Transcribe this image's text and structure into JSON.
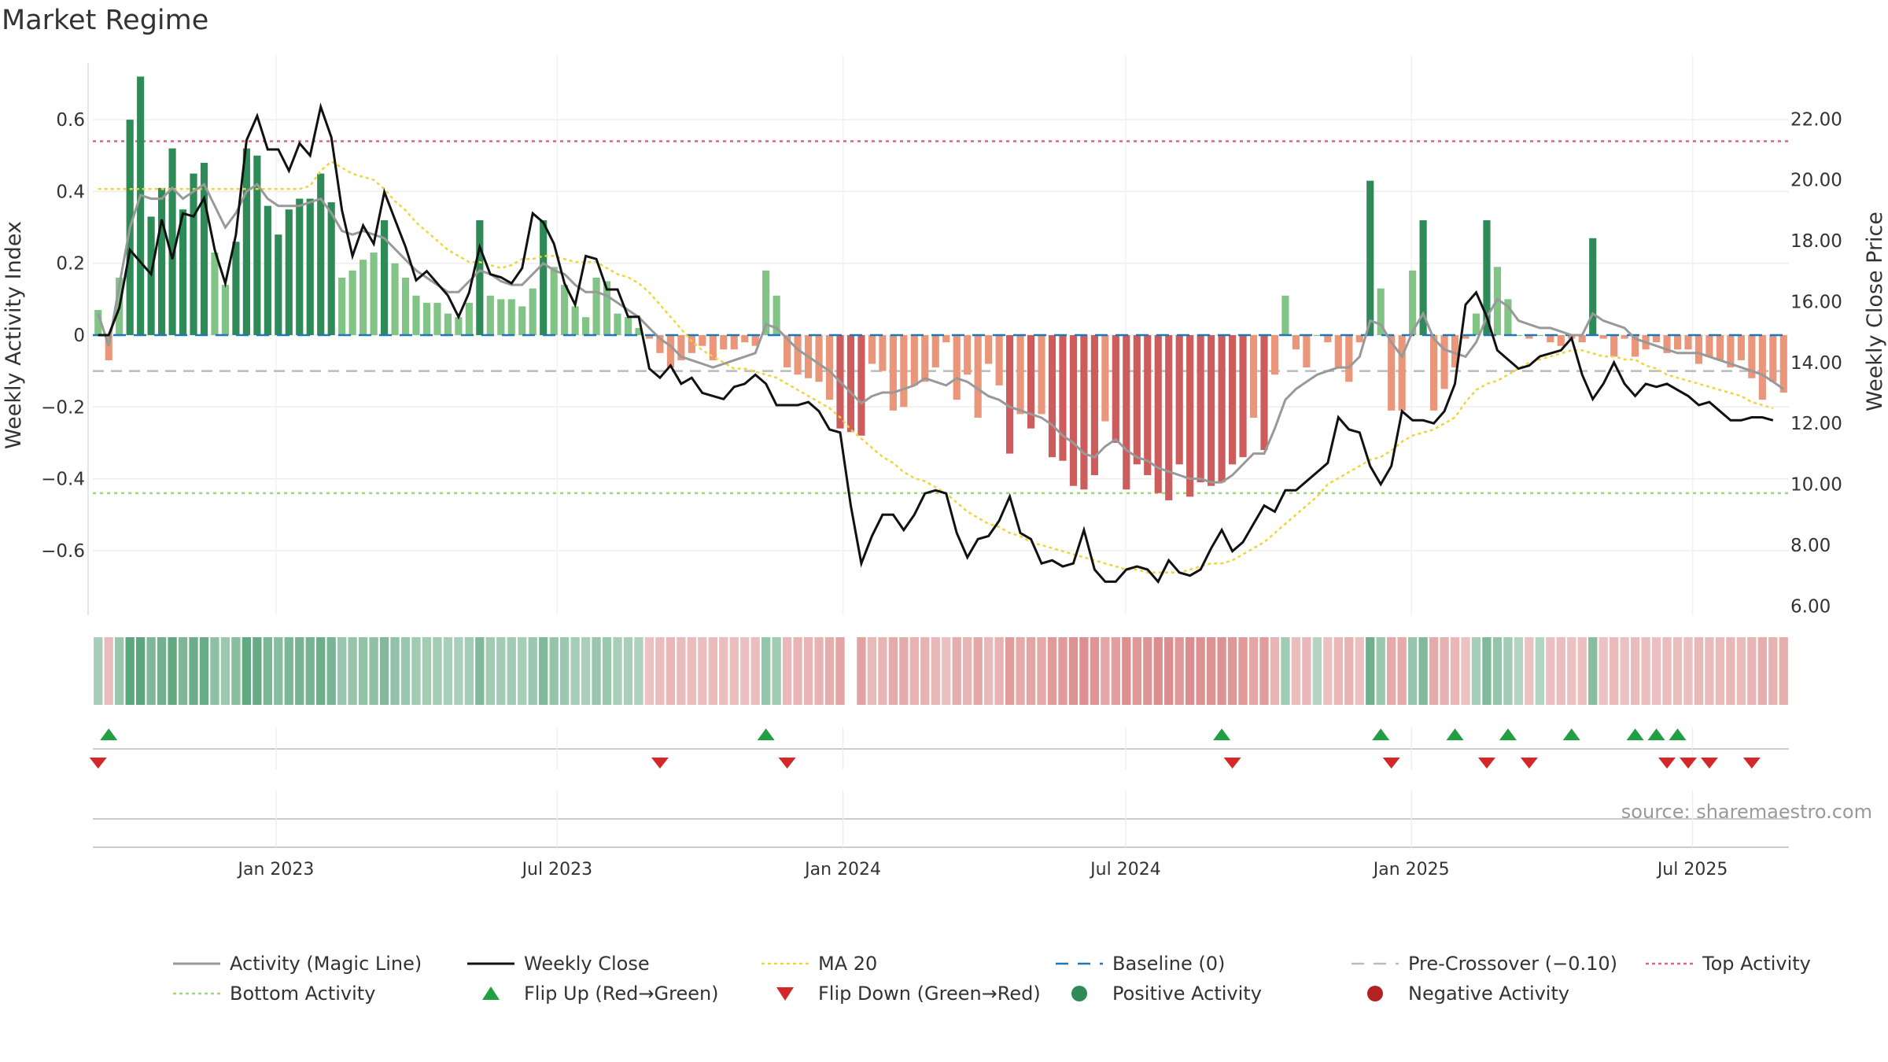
{
  "chart_data": {
    "type": "bar",
    "title": "Market Regime",
    "ylabel_left": "Weekly Activity Index",
    "ylabel_right": "Weekly Close Price",
    "source": "source: sharemaestro.com",
    "ylim_left": [
      -0.78,
      0.78
    ],
    "ylim_right": [
      5.7,
      24.1
    ],
    "left_ticks": [
      {
        "v": 0.6,
        "label": "0.6"
      },
      {
        "v": 0.4,
        "label": "0.4"
      },
      {
        "v": 0.2,
        "label": "0.2"
      },
      {
        "v": 0,
        "label": "0"
      },
      {
        "v": -0.2,
        "label": "−0.2"
      },
      {
        "v": -0.4,
        "label": "−0.4"
      },
      {
        "v": -0.6,
        "label": "−0.6"
      }
    ],
    "right_ticks": [
      "22.00",
      "20.00",
      "18.00",
      "16.00",
      "14.00",
      "12.00",
      "10.00",
      "8.00",
      "6.00"
    ],
    "date_start": "2022-09-05",
    "date_end": "2025-09-01",
    "x_ticks": [
      {
        "date": "2023-01-01",
        "label": "Jan 2023"
      },
      {
        "date": "2023-07-01",
        "label": "Jul 2023"
      },
      {
        "date": "2024-01-01",
        "label": "Jan 2024"
      },
      {
        "date": "2024-07-01",
        "label": "Jul 2024"
      },
      {
        "date": "2025-01-01",
        "label": "Jan 2025"
      },
      {
        "date": "2025-07-01",
        "label": "Jul 2025"
      }
    ],
    "reference_lines": {
      "top_activity": 0.54,
      "bottom_activity": -0.44,
      "baseline": 0,
      "pre_crossover": -0.1
    },
    "colors": {
      "strong_green": "#2e8b57",
      "light_green": "#82c386",
      "strong_red": "#cd5c5c",
      "light_red": "#e9967a",
      "magic_line": "#999999",
      "close": "#111111",
      "ma20": "#f0d43a",
      "baseline": "#1f77b4",
      "pre_crossover": "#bbbbbb",
      "top_activity": "#d9667a",
      "bottom_activity": "#9fd67a",
      "flip_up": "#20a040",
      "flip_down": "#d62728"
    },
    "activity": [
      0.07,
      -0.07,
      0.16,
      0.6,
      0.72,
      0.33,
      0.41,
      0.52,
      0.35,
      0.45,
      0.48,
      0.23,
      0.14,
      0.26,
      0.52,
      0.5,
      0.36,
      0.28,
      0.35,
      0.38,
      0.38,
      0.45,
      0.37,
      0.16,
      0.18,
      0.21,
      0.23,
      0.32,
      0.2,
      0.16,
      0.11,
      0.09,
      0.09,
      0.06,
      0.05,
      0.09,
      0.32,
      0.11,
      0.1,
      0.1,
      0.08,
      0.13,
      0.32,
      0.19,
      0.14,
      0.08,
      0.05,
      0.16,
      0.15,
      0.06,
      0.05,
      0.02,
      -0.01,
      -0.05,
      -0.09,
      -0.07,
      -0.05,
      -0.03,
      -0.07,
      -0.04,
      -0.04,
      -0.02,
      -0.03,
      0.18,
      0.11,
      -0.09,
      -0.11,
      -0.12,
      -0.13,
      -0.18,
      -0.26,
      -0.27,
      -0.28,
      -0.08,
      -0.1,
      -0.21,
      -0.2,
      -0.14,
      -0.13,
      -0.09,
      -0.02,
      -0.18,
      -0.11,
      -0.23,
      -0.08,
      -0.14,
      -0.33,
      -0.22,
      -0.26,
      -0.22,
      -0.34,
      -0.35,
      -0.42,
      -0.43,
      -0.39,
      -0.24,
      -0.3,
      -0.43,
      -0.36,
      -0.39,
      -0.44,
      -0.46,
      -0.36,
      -0.45,
      -0.41,
      -0.42,
      -0.41,
      -0.36,
      -0.34,
      -0.23,
      -0.32,
      -0.11,
      0.11,
      -0.04,
      -0.09,
      0.0,
      -0.02,
      -0.09,
      -0.13,
      -0.02,
      0.43,
      0.13,
      -0.21,
      -0.21,
      0.18,
      0.32,
      -0.21,
      -0.15,
      -0.09,
      -0.01,
      0.06,
      0.32,
      0.19,
      0.1,
      0.0,
      -0.01,
      0.0,
      -0.02,
      -0.03,
      -0.01,
      -0.02,
      0.27,
      -0.01,
      -0.06,
      -0.01,
      -0.06,
      -0.04,
      -0.02,
      -0.05,
      -0.04,
      -0.04,
      -0.08,
      -0.06,
      -0.07,
      -0.09,
      -0.07,
      -0.12,
      -0.18,
      -0.13,
      -0.16
    ],
    "magic_line": [
      0.06,
      -0.03,
      0.14,
      0.3,
      0.39,
      0.38,
      0.38,
      0.41,
      0.38,
      0.4,
      0.42,
      0.36,
      0.3,
      0.34,
      0.4,
      0.42,
      0.38,
      0.36,
      0.36,
      0.36,
      0.37,
      0.38,
      0.34,
      0.29,
      0.28,
      0.29,
      0.28,
      0.27,
      0.24,
      0.21,
      0.18,
      0.16,
      0.14,
      0.12,
      0.12,
      0.15,
      0.18,
      0.17,
      0.15,
      0.14,
      0.14,
      0.17,
      0.2,
      0.18,
      0.17,
      0.14,
      0.12,
      0.12,
      0.11,
      0.09,
      0.07,
      0.05,
      0.02,
      -0.01,
      -0.03,
      -0.06,
      -0.07,
      -0.08,
      -0.09,
      -0.08,
      -0.07,
      -0.06,
      -0.05,
      0.03,
      0.02,
      -0.01,
      -0.04,
      -0.06,
      -0.08,
      -0.1,
      -0.13,
      -0.16,
      -0.19,
      -0.17,
      -0.16,
      -0.16,
      -0.15,
      -0.14,
      -0.12,
      -0.13,
      -0.14,
      -0.12,
      -0.13,
      -0.15,
      -0.17,
      -0.18,
      -0.2,
      -0.21,
      -0.22,
      -0.23,
      -0.25,
      -0.28,
      -0.3,
      -0.33,
      -0.34,
      -0.31,
      -0.29,
      -0.32,
      -0.34,
      -0.35,
      -0.37,
      -0.38,
      -0.39,
      -0.4,
      -0.4,
      -0.41,
      -0.41,
      -0.39,
      -0.36,
      -0.33,
      -0.33,
      -0.26,
      -0.18,
      -0.15,
      -0.13,
      -0.11,
      -0.1,
      -0.09,
      -0.09,
      -0.06,
      0.04,
      0.03,
      -0.02,
      -0.06,
      0.01,
      0.06,
      -0.01,
      -0.04,
      -0.05,
      -0.06,
      -0.02,
      0.05,
      0.1,
      0.08,
      0.04,
      0.03,
      0.02,
      0.02,
      0.01,
      0.0,
      0.0,
      0.06,
      0.04,
      0.03,
      0.02,
      -0.01,
      -0.02,
      -0.03,
      -0.04,
      -0.05,
      -0.05,
      -0.05,
      -0.06,
      -0.07,
      -0.08,
      -0.09,
      -0.1,
      -0.11,
      -0.13,
      -0.15
    ],
    "weekly_close": [
      14.9,
      14.9,
      15.8,
      17.7,
      17.3,
      16.9,
      18.7,
      17.4,
      18.9,
      18.8,
      19.4,
      17.7,
      16.6,
      18.2,
      21.3,
      22.1,
      21.0,
      21.0,
      20.3,
      21.2,
      20.8,
      22.4,
      21.4,
      19.0,
      17.5,
      18.5,
      17.9,
      19.6,
      18.7,
      17.8,
      16.7,
      17.0,
      16.6,
      16.2,
      15.5,
      16.3,
      17.8,
      16.9,
      16.8,
      16.6,
      17.1,
      18.9,
      18.6,
      17.9,
      16.6,
      15.9,
      17.5,
      17.4,
      16.4,
      16.4,
      15.5,
      15.5,
      13.8,
      13.5,
      13.9,
      13.3,
      13.5,
      13.0,
      12.9,
      12.8,
      13.2,
      13.3,
      13.6,
      13.3,
      12.6,
      12.6,
      12.6,
      12.7,
      12.4,
      11.8,
      11.7,
      9.3,
      7.4,
      8.3,
      9.0,
      9.0,
      8.5,
      9.0,
      9.7,
      9.8,
      9.7,
      8.4,
      7.6,
      8.2,
      8.3,
      8.8,
      9.6,
      8.4,
      8.2,
      7.4,
      7.5,
      7.3,
      7.4,
      8.5,
      7.2,
      6.8,
      6.8,
      7.2,
      7.3,
      7.2,
      6.8,
      7.5,
      7.1,
      7.0,
      7.2,
      7.9,
      8.5,
      7.8,
      8.1,
      8.7,
      9.3,
      9.1,
      9.8,
      9.8,
      10.1,
      10.4,
      10.7,
      12.2,
      11.8,
      11.7,
      10.6,
      10.0,
      10.6,
      12.4,
      12.1,
      12.1,
      12.0,
      12.4,
      13.3,
      15.9,
      16.3,
      15.5,
      14.4,
      14.1,
      13.8,
      13.9,
      14.2,
      14.3,
      14.4,
      14.8,
      13.6,
      12.8,
      13.3,
      14.0,
      13.3,
      12.9,
      13.3,
      13.2,
      13.3,
      13.1,
      12.9,
      12.6,
      12.7,
      12.4,
      12.1,
      12.1,
      12.2,
      12.2,
      12.1
    ],
    "ma20": [
      19.7,
      19.7,
      19.7,
      19.7,
      19.7,
      19.7,
      19.7,
      19.7,
      19.7,
      19.7,
      19.7,
      19.7,
      19.7,
      19.7,
      19.7,
      19.7,
      19.7,
      19.7,
      19.7,
      19.7,
      19.8,
      20.3,
      20.6,
      20.4,
      20.2,
      20.1,
      20.0,
      19.7,
      19.3,
      19.0,
      18.6,
      18.3,
      18.0,
      17.7,
      17.5,
      17.3,
      17.3,
      17.2,
      17.1,
      17.2,
      17.4,
      17.4,
      17.5,
      17.5,
      17.4,
      17.3,
      17.3,
      17.3,
      17.1,
      16.9,
      16.8,
      16.6,
      16.3,
      15.9,
      15.5,
      15.1,
      14.7,
      14.4,
      14.2,
      14.0,
      13.8,
      13.8,
      13.7,
      13.6,
      13.5,
      13.3,
      13.1,
      12.9,
      12.7,
      12.5,
      12.2,
      11.8,
      11.5,
      11.2,
      10.9,
      10.7,
      10.4,
      10.2,
      10.1,
      9.9,
      9.7,
      9.4,
      9.1,
      8.9,
      8.7,
      8.6,
      8.4,
      8.3,
      8.1,
      8.0,
      7.9,
      7.8,
      7.7,
      7.6,
      7.5,
      7.4,
      7.3,
      7.2,
      7.2,
      7.1,
      7.1,
      7.1,
      7.1,
      7.2,
      7.3,
      7.4,
      7.4,
      7.5,
      7.7,
      7.9,
      8.1,
      8.4,
      8.7,
      9.0,
      9.3,
      9.6,
      10.0,
      10.2,
      10.4,
      10.6,
      10.8,
      10.9,
      11.1,
      11.4,
      11.6,
      11.7,
      11.8,
      12.0,
      12.2,
      12.7,
      13.1,
      13.3,
      13.4,
      13.6,
      13.8,
      14.0,
      14.1,
      14.2,
      14.3,
      14.4,
      14.4,
      14.3,
      14.2,
      14.2,
      14.1,
      14.1,
      13.9,
      13.8,
      13.6,
      13.5,
      13.4,
      13.3,
      13.2,
      13.1,
      13.0,
      12.9,
      12.7,
      12.6,
      12.5
    ],
    "flip_up_weeks": [
      1,
      63,
      106,
      121,
      128,
      133,
      139,
      145,
      147,
      149
    ],
    "flip_down_weeks": [
      0,
      53,
      65,
      107,
      122,
      131,
      135,
      148,
      150,
      152,
      156
    ],
    "legend": [
      {
        "label": "Activity (Magic Line)",
        "kind": "line",
        "color": "#999999"
      },
      {
        "label": "Weekly Close",
        "kind": "line",
        "color": "#111111"
      },
      {
        "label": "MA 20",
        "kind": "dotted",
        "color": "#f0d43a"
      },
      {
        "label": "Baseline (0)",
        "kind": "dashed",
        "color": "#1f77b4"
      },
      {
        "label": "Pre-Crossover (−0.10)",
        "kind": "dashed",
        "color": "#bbbbbb"
      },
      {
        "label": "Top Activity",
        "kind": "dotted",
        "color": "#d9667a"
      },
      {
        "label": "Bottom Activity",
        "kind": "dotted",
        "color": "#9fd67a"
      },
      {
        "label": "Flip Up (Red→Green)",
        "kind": "tri-up",
        "color": "#20a040"
      },
      {
        "label": "Flip Down (Green→Red)",
        "kind": "tri-down",
        "color": "#d62728"
      },
      {
        "label": "Positive Activity",
        "kind": "dot",
        "color": "#2e8b57"
      },
      {
        "label": "Negative Activity",
        "kind": "dot",
        "color": "#b22222"
      }
    ]
  }
}
